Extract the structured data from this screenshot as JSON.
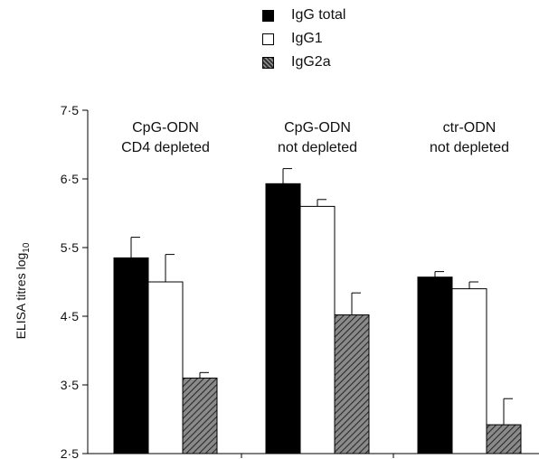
{
  "chart_data": {
    "type": "bar",
    "ylabel": "ELISA titres log",
    "ylabel_subscript": "10",
    "ylim": [
      2.5,
      7.5
    ],
    "yticks": [
      "2·5",
      "3·5",
      "4·5",
      "5·5",
      "6·5",
      "7·5"
    ],
    "ytick_values": [
      2.5,
      3.5,
      4.5,
      5.5,
      6.5,
      7.5
    ],
    "grid": false,
    "legend_position": "top",
    "groups": [
      {
        "line1": "CpG-ODN",
        "line2": "CD4 depleted"
      },
      {
        "line1": "CpG-ODN",
        "line2": "not depleted"
      },
      {
        "line1": "ctr-ODN",
        "line2": "not depleted"
      }
    ],
    "series": [
      {
        "name": "IgG total",
        "fill": "#000000",
        "values": [
          5.35,
          6.43,
          5.07
        ],
        "errors": [
          0.3,
          0.22,
          0.08
        ]
      },
      {
        "name": "IgG1",
        "fill": "#ffffff",
        "values": [
          5.0,
          6.1,
          4.9
        ],
        "errors": [
          0.4,
          0.1,
          0.1
        ]
      },
      {
        "name": "IgG2a",
        "fill": "hatch",
        "values": [
          3.6,
          4.52,
          2.92
        ],
        "errors": [
          0.08,
          0.32,
          0.38
        ]
      }
    ]
  }
}
